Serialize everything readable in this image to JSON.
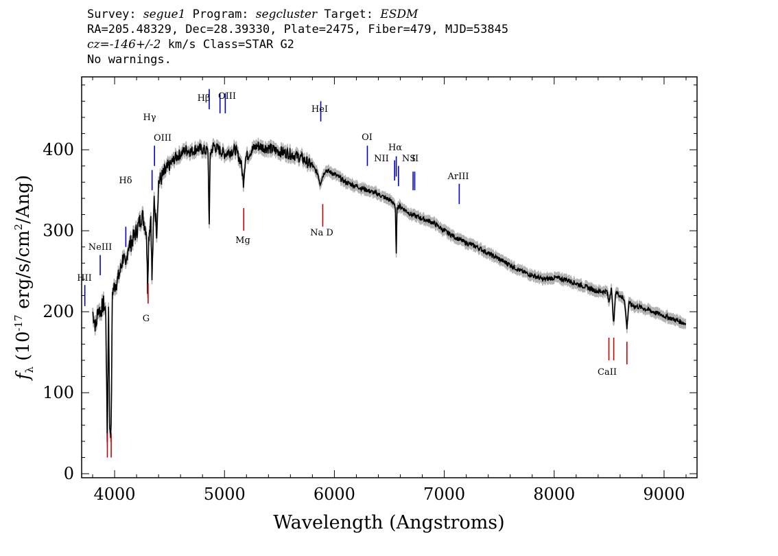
{
  "header": {
    "line1": {
      "survey_label": "Survey:",
      "survey": "segue1",
      "program_label": "Program:",
      "program": "segcluster",
      "target_label": "Target:",
      "target": "ESDM"
    },
    "line2": "RA=205.48329, Dec=28.39330, Plate=2475, Fiber=479, MJD=53845",
    "line3": {
      "cz": "cz=-146+/-2",
      "rest": " km/s Class=STAR G2"
    },
    "line4": "No warnings."
  },
  "chart_data": {
    "type": "line",
    "xlabel": "Wavelength (Angstroms)",
    "ylabel": "f_λ (10^-17 erg/s/cm^2/Ang)",
    "xlim": [
      3700,
      9300
    ],
    "ylim": [
      -5,
      490
    ],
    "xticks": [
      4000,
      5000,
      6000,
      7000,
      8000,
      9000
    ],
    "yticks": [
      0,
      100,
      200,
      300,
      400
    ],
    "grid": false,
    "series": [
      {
        "x": [
          3800,
          3830,
          3850,
          3870,
          3900,
          3920,
          3933,
          3945,
          3955,
          3968,
          3980,
          3995,
          4010,
          4030,
          4050,
          4080,
          4101,
          4120,
          4150,
          4200,
          4250,
          4290,
          4300,
          4310,
          4330,
          4340,
          4360,
          4383,
          4400,
          4450,
          4500,
          4550,
          4600,
          4650,
          4700,
          4750,
          4800,
          4850,
          4861,
          4870,
          4900,
          4950,
          5000,
          5050,
          5100,
          5150,
          5172,
          5190,
          5250,
          5300,
          5350,
          5400,
          5450,
          5500,
          5600,
          5700,
          5800,
          5850,
          5870,
          5895,
          5920,
          6000,
          6100,
          6200,
          6300,
          6400,
          6500,
          6540,
          6555,
          6563,
          6570,
          6600,
          6700,
          6800,
          6900,
          7000,
          7100,
          7200,
          7300,
          7400,
          7500,
          7600,
          7700,
          7800,
          7900,
          8000,
          8100,
          8200,
          8300,
          8400,
          8480,
          8498,
          8520,
          8542,
          8560,
          8600,
          8640,
          8662,
          8680,
          8700,
          8800,
          8900,
          9000,
          9100,
          9200
        ],
        "y": [
          200,
          180,
          205,
          200,
          210,
          200,
          40,
          210,
          60,
          50,
          225,
          230,
          235,
          240,
          250,
          270,
          250,
          280,
          285,
          300,
          320,
          300,
          230,
          290,
          320,
          240,
          340,
          300,
          360,
          370,
          380,
          390,
          395,
          400,
          398,
          402,
          400,
          398,
          305,
          395,
          405,
          400,
          395,
          398,
          400,
          385,
          360,
          390,
          400,
          405,
          403,
          402,
          400,
          398,
          395,
          390,
          380,
          370,
          358,
          368,
          375,
          370,
          360,
          355,
          350,
          345,
          338,
          335,
          325,
          270,
          330,
          330,
          320,
          315,
          310,
          300,
          292,
          285,
          280,
          272,
          265,
          258,
          250,
          245,
          240,
          242,
          240,
          235,
          230,
          225,
          225,
          212,
          230,
          185,
          225,
          220,
          215,
          180,
          212,
          208,
          205,
          200,
          195,
          190,
          185
        ]
      }
    ],
    "lines": [
      {
        "label": "HII",
        "x": 3729,
        "kind": "emission"
      },
      {
        "label": "NeIII",
        "x": 3869,
        "kind": "emission"
      },
      {
        "label": "Hδ",
        "x": 4102,
        "kind": "emission"
      },
      {
        "label": "Hγ",
        "x": 4341,
        "kind": "emission"
      },
      {
        "label": "OIII",
        "x": 4363,
        "kind": "emission"
      },
      {
        "label": "Hβ",
        "x": 4861,
        "kind": "emission"
      },
      {
        "label": "OIII",
        "x": 4959,
        "kind": "emission"
      },
      {
        "label": "",
        "x": 5007,
        "kind": "emission"
      },
      {
        "label": "HeI",
        "x": 5876,
        "kind": "emission"
      },
      {
        "label": "OI",
        "x": 6300,
        "kind": "emission"
      },
      {
        "label": "NII",
        "x": 6548,
        "kind": "emission"
      },
      {
        "label": "Hα",
        "x": 6563,
        "kind": "emission"
      },
      {
        "label": "",
        "x": 6583,
        "kind": "emission"
      },
      {
        "label": "NS",
        "x": 6716,
        "kind": "emission"
      },
      {
        "label": "II",
        "x": 6731,
        "kind": "emission"
      },
      {
        "label": "ArIII",
        "x": 7136,
        "kind": "emission"
      },
      {
        "label": "",
        "x": 3934,
        "kind": "absorption"
      },
      {
        "label": "",
        "x": 3969,
        "kind": "absorption"
      },
      {
        "label": "G",
        "x": 4305,
        "kind": "absorption"
      },
      {
        "label": "Mg",
        "x": 5175,
        "kind": "absorption"
      },
      {
        "label": "Na D",
        "x": 5894,
        "kind": "absorption"
      },
      {
        "label": "CaII",
        "x": 8498,
        "kind": "absorption"
      },
      {
        "label": "",
        "x": 8542,
        "kind": "absorption"
      },
      {
        "label": "",
        "x": 8662,
        "kind": "absorption"
      }
    ],
    "colors": {
      "flux": "#000000",
      "error": "#b4b4b4",
      "emission": "#0000c8",
      "absorption": "#c80000"
    }
  }
}
